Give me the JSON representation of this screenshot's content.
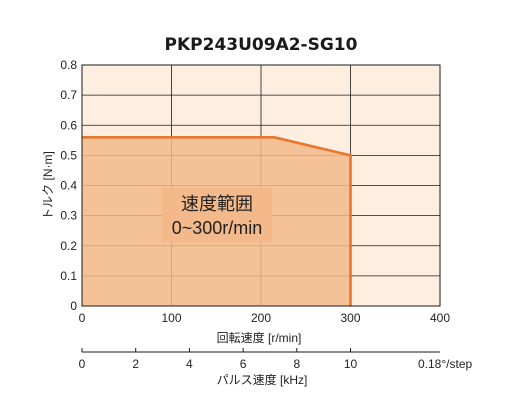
{
  "chart_data": {
    "type": "area",
    "title": "PKP243U09A2-SG10",
    "xlabel": "回転速度 [r/min]",
    "ylabel": "トルク [N·m]",
    "xlim": [
      0,
      400
    ],
    "ylim": [
      0,
      0.8
    ],
    "x_ticks": [
      "0",
      "100",
      "200",
      "300",
      "400"
    ],
    "y_ticks": [
      "0",
      "0.1",
      "0.2",
      "0.3",
      "0.4",
      "0.5",
      "0.6",
      "0.7",
      "0.8"
    ],
    "grid": true,
    "series": [
      {
        "x": [
          0,
          0,
          215,
          300,
          300
        ],
        "y": [
          0,
          0.56,
          0.56,
          0.5,
          0
        ]
      }
    ],
    "region_label": [
      "速度範囲",
      "0~300r/min"
    ],
    "secondary_axis": {
      "label": "パルス速度 [kHz]",
      "ticks": [
        "0",
        "2",
        "4",
        "6",
        "8",
        "10"
      ],
      "unit_note": "0.18°/step"
    },
    "colors": {
      "plot_background": "#fdeee0",
      "area_fill": "#f3b98a",
      "area_edge": "#e8772e",
      "grid": "#1a1a1a"
    }
  }
}
